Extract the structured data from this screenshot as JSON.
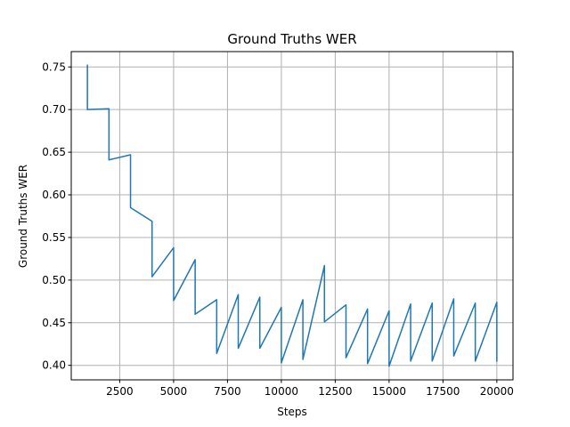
{
  "chart_data": {
    "type": "line",
    "title": "Ground Truths WER",
    "xlabel": "Steps",
    "ylabel": "Ground Truths WER",
    "xlim": [
      250,
      20750
    ],
    "ylim": [
      0.383,
      0.768
    ],
    "grid": true,
    "xticks": [
      2500,
      5000,
      7500,
      10000,
      12500,
      15000,
      17500,
      20000
    ],
    "xtick_labels": [
      "2500",
      "5000",
      "7500",
      "10000",
      "12500",
      "15000",
      "17500",
      "20000"
    ],
    "yticks": [
      0.4,
      0.45,
      0.5,
      0.55,
      0.6,
      0.65,
      0.7,
      0.75
    ],
    "ytick_labels": [
      "0.40",
      "0.45",
      "0.50",
      "0.55",
      "0.60",
      "0.65",
      "0.70",
      "0.75"
    ],
    "series": [
      {
        "color": "#1f77b4",
        "x": [
          1000,
          1000,
          2000,
          2000,
          3000,
          3000,
          4000,
          4000,
          5000,
          5000,
          6000,
          6000,
          7000,
          7000,
          8000,
          8000,
          9000,
          9000,
          10000,
          10000,
          11000,
          11000,
          12000,
          12000,
          13000,
          13000,
          14000,
          14000,
          15000,
          15000,
          16000,
          16000,
          17000,
          17000,
          18000,
          18000,
          19000,
          19000,
          20000,
          20000
        ],
        "y": [
          0.752,
          0.7,
          0.701,
          0.641,
          0.647,
          0.585,
          0.569,
          0.504,
          0.538,
          0.476,
          0.524,
          0.46,
          0.477,
          0.414,
          0.483,
          0.42,
          0.48,
          0.42,
          0.468,
          0.403,
          0.477,
          0.407,
          0.517,
          0.451,
          0.471,
          0.409,
          0.466,
          0.402,
          0.464,
          0.399,
          0.472,
          0.405,
          0.473,
          0.405,
          0.478,
          0.411,
          0.473,
          0.405,
          0.474,
          0.405
        ]
      }
    ]
  }
}
